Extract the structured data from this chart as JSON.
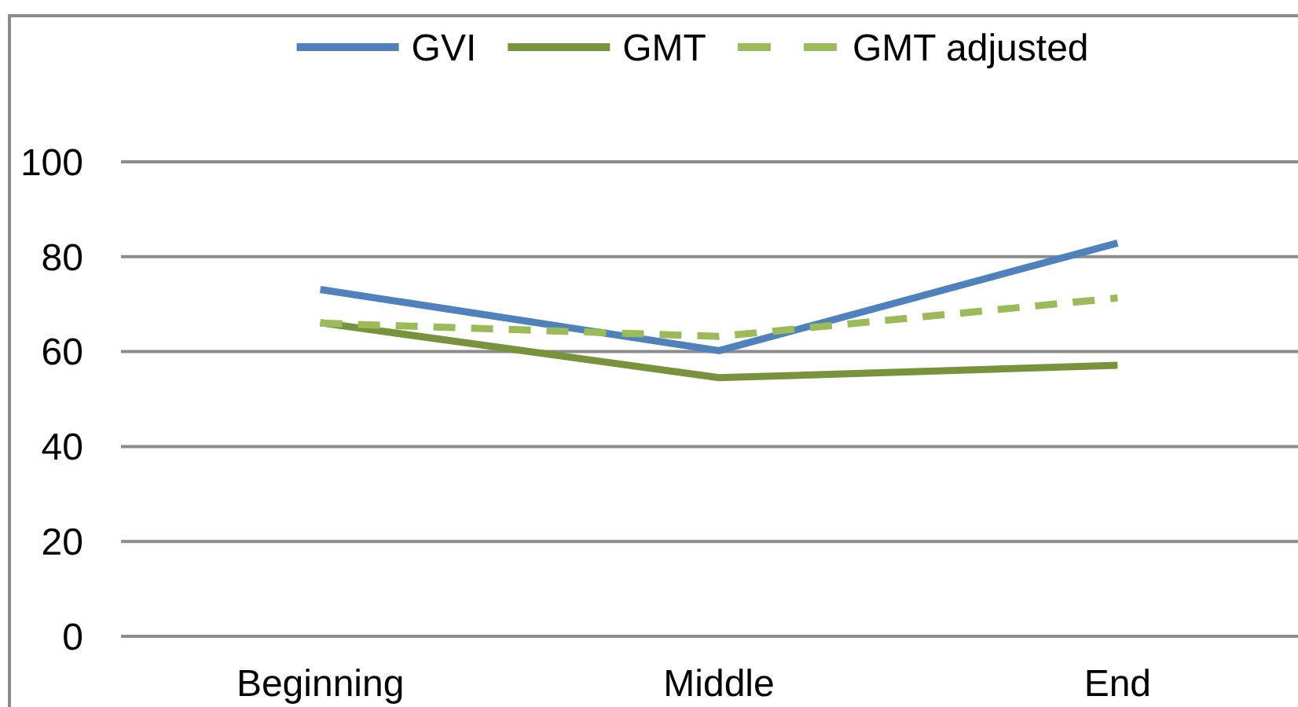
{
  "chart_data": {
    "type": "line",
    "categories": [
      "Beginning",
      "Middle",
      "End"
    ],
    "series": [
      {
        "name": "GVI",
        "color": "#4f81bd",
        "values": [
          73.1,
          60.2,
          82.9
        ]
      },
      {
        "name": "GMT",
        "color": "#77933c",
        "values": [
          66.1,
          54.5,
          57.1
        ]
      },
      {
        "name": "GMT adjusted",
        "color": "#9bbb59",
        "values": [
          66,
          63.2,
          71.3
        ],
        "line_style": "dashed"
      }
    ],
    "ylim": [
      0,
      100
    ],
    "yticks": [
      0,
      20,
      40,
      60,
      80,
      100
    ],
    "grid": "y",
    "legend": "top",
    "marker": "none",
    "line_style": "solid"
  }
}
